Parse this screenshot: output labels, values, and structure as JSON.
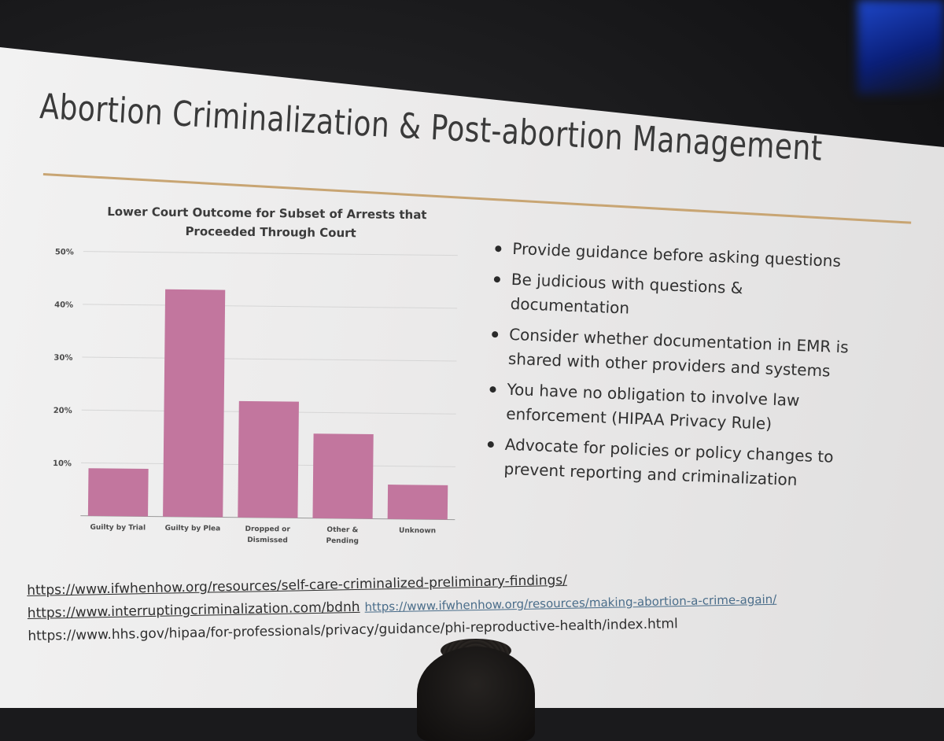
{
  "slide": {
    "title": "Abortion Criminalization & Post-abortion Management",
    "accent_rule_color": "#c8a573",
    "bullets": [
      "Provide guidance before asking questions",
      "Be judicious with questions & documentation",
      "Consider whether documentation in EMR is shared with other providers and systems",
      "You have no obligation to involve law enforcement (HIPAA Privacy Rule)",
      "Advocate for policies or policy changes to prevent reporting and criminalization"
    ],
    "links": {
      "line1": "https://www.ifwhenhow.org/resources/self-care-criminalized-preliminary-findings/",
      "line2a": "https://www.interruptingcriminalization.com/bdnh",
      "line2b": "https://www.ifwhenhow.org/resources/making-abortion-a-crime-again/",
      "line3": "https://www.hhs.gov/hipaa/for-professionals/privacy/guidance/phi-reproductive-health/index.html"
    }
  },
  "chart_data": {
    "type": "bar",
    "title_lines": [
      "Lower Court Outcome for Subset of Arrests that",
      "Proceeded Through Court"
    ],
    "categories": [
      [
        "Guilty by Trial"
      ],
      [
        "Guilty by Plea"
      ],
      [
        "Dropped or",
        "Dismissed"
      ],
      [
        "Other &",
        "Pending"
      ],
      [
        "Unknown"
      ]
    ],
    "values": [
      9,
      43,
      22,
      16,
      6.5
    ],
    "ylim": [
      0,
      50
    ],
    "yticks": [
      10,
      20,
      30,
      40,
      50
    ],
    "ytick_labels": [
      "10%",
      "20%",
      "30%",
      "40%",
      "50%"
    ],
    "bar_color": "#c2769e",
    "grid": true,
    "legend": "none"
  }
}
